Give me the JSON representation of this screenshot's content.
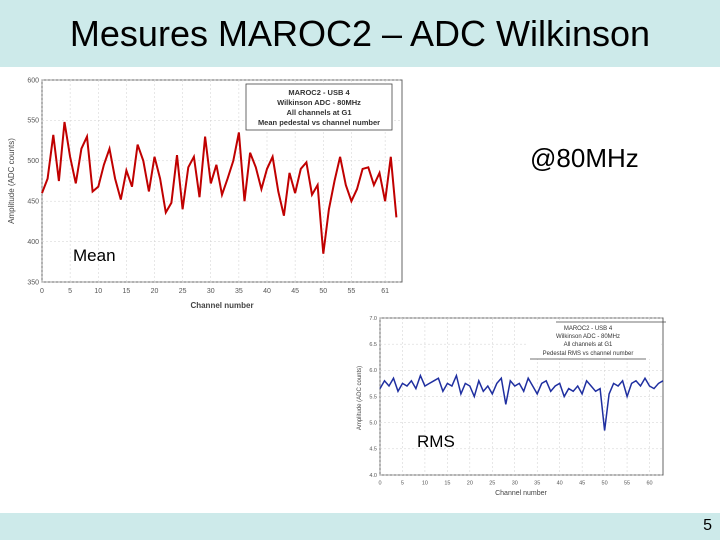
{
  "slide": {
    "title": "Mesures MAROC2 – ADC Wilkinson",
    "page_number": "5"
  },
  "labels": {
    "frequency": "@80MHz",
    "mean": "Mean",
    "rms": "RMS"
  },
  "colors": {
    "band": "#cdeaea",
    "mean_line": "#c00000",
    "rms_line": "#1f2fa0"
  },
  "chart_data": [
    {
      "type": "line",
      "legend": [
        "MAROC2 - USB 4",
        "Wilkinson ADC - 80MHz",
        "All channels at G1",
        "Mean pedestal vs channel number"
      ],
      "legend_position": "top-right",
      "xlabel": "Channel number",
      "ylabel": "Amplitude (ADC counts)",
      "xlim": [
        0,
        64
      ],
      "ylim": [
        350,
        600
      ],
      "xticks": [
        "0",
        "5",
        "10",
        "15",
        "20",
        "25",
        "30",
        "35",
        "40",
        "45",
        "50",
        "55",
        "61"
      ],
      "yticks": [
        "350",
        "400",
        "450",
        "500",
        "550",
        "600"
      ],
      "grid": true,
      "series": [
        {
          "x": [
            0,
            1,
            2,
            3,
            4,
            5,
            6,
            7,
            8,
            9,
            10,
            11,
            12,
            13,
            14,
            15,
            16,
            17,
            18,
            19,
            20,
            21,
            22,
            23,
            24,
            25,
            26,
            27,
            28,
            29,
            30,
            31,
            32,
            33,
            34,
            35,
            36,
            37,
            38,
            39,
            40,
            41,
            42,
            43,
            44,
            45,
            46,
            47,
            48,
            49,
            50,
            51,
            52,
            53,
            54,
            55,
            56,
            57,
            58,
            59,
            60,
            61,
            62,
            63
          ],
          "y": [
            460,
            478,
            532,
            475,
            548,
            505,
            472,
            515,
            530,
            462,
            468,
            495,
            515,
            478,
            452,
            488,
            468,
            520,
            500,
            462,
            505,
            478,
            436,
            448,
            507,
            440,
            492,
            505,
            455,
            530,
            472,
            495,
            458,
            478,
            500,
            535,
            450,
            510,
            492,
            465,
            490,
            505,
            462,
            432,
            485,
            460,
            490,
            498,
            458,
            470,
            385,
            440,
            475,
            505,
            470,
            450,
            465,
            490,
            492,
            470,
            485,
            450,
            505,
            430
          ]
        }
      ]
    },
    {
      "type": "line",
      "legend": [
        "MAROC2 - USB 4",
        "Wilkinson ADC - 80MHz",
        "All channels at G1",
        "Pedestal RMS vs channel number"
      ],
      "legend_position": "top-right",
      "xlabel": "Channel number",
      "ylabel": "Amplitude (ADC counts)",
      "xlim": [
        0,
        63
      ],
      "ylim": [
        4.0,
        7.0
      ],
      "xticks": [
        "0",
        "5",
        "10",
        "15",
        "20",
        "25",
        "30",
        "35",
        "40",
        "45",
        "50",
        "55",
        "60"
      ],
      "yticks": [
        "4.0",
        "4.5",
        "5.0",
        "5.5",
        "6.0",
        "6.5",
        "7.0"
      ],
      "grid": true,
      "series": [
        {
          "x": [
            0,
            1,
            2,
            3,
            4,
            5,
            6,
            7,
            8,
            9,
            10,
            11,
            12,
            13,
            14,
            15,
            16,
            17,
            18,
            19,
            20,
            21,
            22,
            23,
            24,
            25,
            26,
            27,
            28,
            29,
            30,
            31,
            32,
            33,
            34,
            35,
            36,
            37,
            38,
            39,
            40,
            41,
            42,
            43,
            44,
            45,
            46,
            47,
            48,
            49,
            50,
            51,
            52,
            53,
            54,
            55,
            56,
            57,
            58,
            59,
            60,
            61,
            62,
            63
          ],
          "y": [
            5.65,
            5.8,
            5.7,
            5.85,
            5.6,
            5.75,
            5.7,
            5.8,
            5.65,
            5.9,
            5.7,
            5.75,
            5.8,
            5.85,
            5.6,
            5.75,
            5.7,
            5.9,
            5.55,
            5.75,
            5.7,
            5.5,
            5.8,
            5.6,
            5.7,
            5.55,
            5.75,
            5.85,
            5.35,
            5.8,
            5.7,
            5.75,
            5.6,
            5.85,
            5.7,
            5.55,
            5.75,
            5.8,
            5.6,
            5.7,
            5.75,
            5.5,
            5.65,
            5.6,
            5.7,
            5.55,
            5.8,
            5.7,
            5.6,
            5.65,
            4.85,
            5.55,
            5.75,
            5.7,
            5.8,
            5.5,
            5.75,
            5.8,
            5.7,
            5.85,
            5.7,
            5.65,
            5.75,
            5.8
          ]
        }
      ]
    }
  ]
}
